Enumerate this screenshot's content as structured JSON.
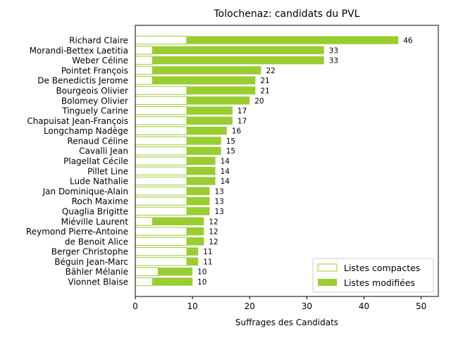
{
  "chart_data": {
    "type": "bar",
    "orientation": "horizontal",
    "stacked": true,
    "title": "Tolochenaz: candidats du PVL",
    "xlabel": "Suffrages des Candidats",
    "ylabel": "",
    "xlim": [
      0,
      53
    ],
    "xticks": [
      0,
      10,
      20,
      30,
      40,
      50
    ],
    "grid": false,
    "legend_position": "lower-right",
    "colors": {
      "compact_fill": "#ffffff",
      "compact_edge": "#9acd32",
      "modified_fill": "#9acd32"
    },
    "categories": [
      "Richard Claire",
      "Morandi-Bettex Laetitia",
      "Weber Céline",
      "Pointet François",
      "De Benedictis Jerome",
      "Bourgeois Olivier",
      "Bolomey Olivier",
      "Tinguely Carine",
      "Chapuisat Jean-François",
      "Longchamp Nadège",
      "Renaud Céline",
      "Cavalli Jean",
      "Plagellat Cécile",
      "Pillet Line",
      "Lude Nathalie",
      "Jan Dominique-Alain",
      "Roch Maxime",
      "Quaglia Brigitte",
      "Miéville Laurent",
      "Reymond Pierre-Antoine",
      "de Benoit Alice",
      "Berger Christophe",
      "Béguin Jean-Marc",
      "Bähler Mélanie",
      "Vionnet Blaise"
    ],
    "series": [
      {
        "name": "Listes compactes",
        "values": [
          9,
          3,
          3,
          3,
          3,
          9,
          9,
          9,
          9,
          9,
          9,
          9,
          9,
          9,
          9,
          9,
          9,
          9,
          3,
          9,
          9,
          9,
          9,
          4,
          3
        ]
      },
      {
        "name": "Listes modifiées",
        "values": [
          37,
          30,
          30,
          19,
          18,
          12,
          11,
          8,
          8,
          7,
          6,
          6,
          5,
          5,
          5,
          4,
          4,
          4,
          9,
          3,
          3,
          2,
          2,
          6,
          7
        ]
      }
    ],
    "totals": [
      46,
      33,
      33,
      22,
      21,
      21,
      20,
      17,
      17,
      16,
      15,
      15,
      14,
      14,
      14,
      13,
      13,
      13,
      12,
      12,
      12,
      11,
      11,
      10,
      10
    ]
  }
}
